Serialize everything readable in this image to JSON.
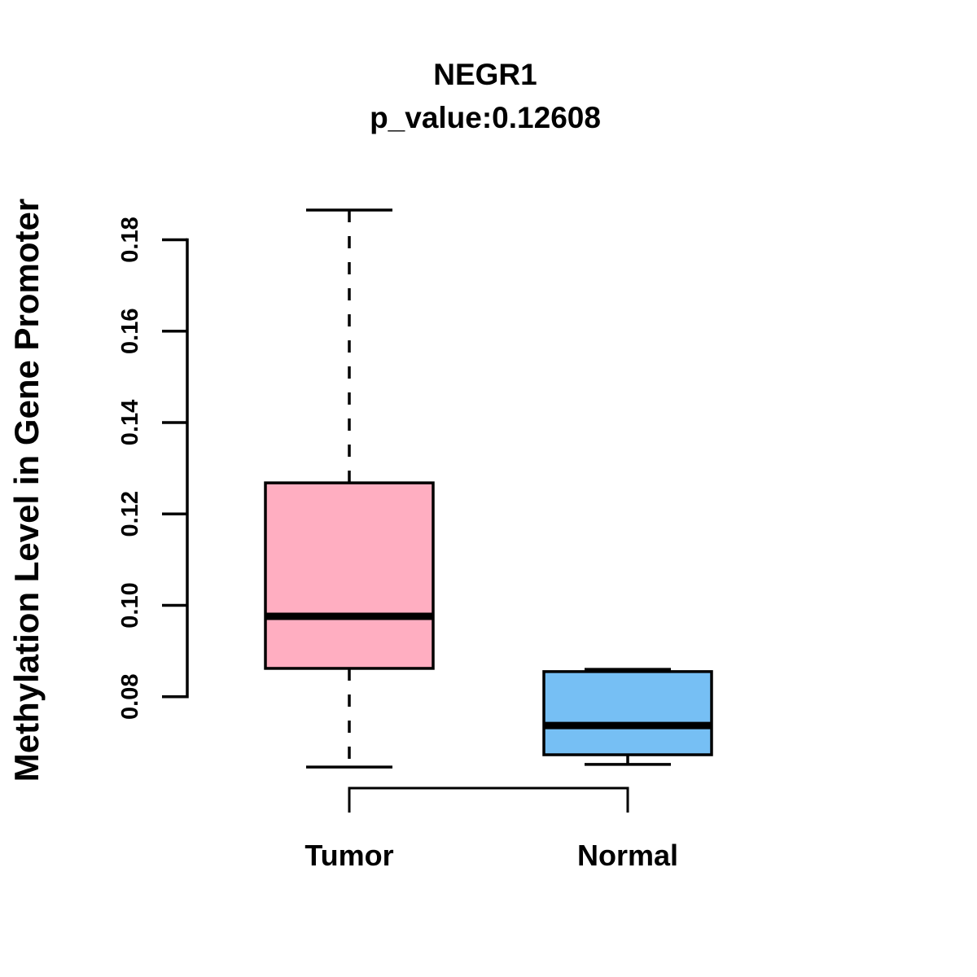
{
  "chart_data": {
    "type": "boxplot",
    "title": "NEGR1",
    "subtitle": "p_value:0.12608",
    "ylabel": "Methylation Level in Gene Promoter",
    "xlabel": "",
    "ylim": [
      0.08,
      0.18
    ],
    "y_ticks": [
      0.08,
      0.1,
      0.12,
      0.14,
      0.16,
      0.18
    ],
    "y_tick_labels": [
      "0.08",
      "0.10",
      "0.12",
      "0.14",
      "0.16",
      "0.18"
    ],
    "grid": false,
    "legend": "none",
    "background_color": "#ffffff",
    "line_color": "#000000",
    "groups": [
      {
        "label": "Tumor",
        "color": "#FFAEC1",
        "whisker_low": 0.0646,
        "q1": 0.0862,
        "median": 0.0976,
        "q3": 0.1268,
        "whisker_high": 0.1865
      },
      {
        "label": "Normal",
        "color": "#76BFF4",
        "whisker_low": 0.0652,
        "q1": 0.0673,
        "median": 0.0737,
        "q3": 0.0855,
        "whisker_high": 0.086
      }
    ],
    "comparison_bracket": {
      "between": [
        "Tumor",
        "Normal"
      ]
    }
  }
}
